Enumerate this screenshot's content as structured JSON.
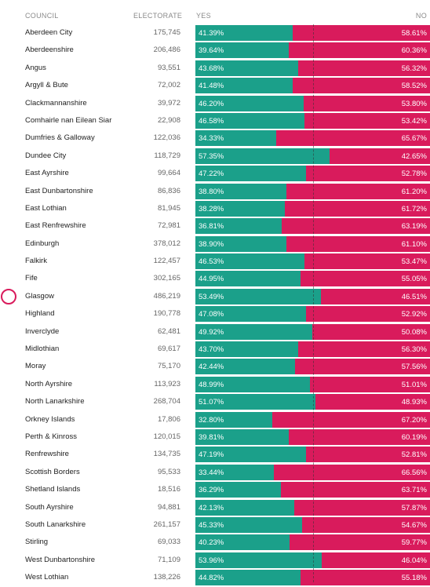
{
  "header": {
    "council": "COUNCIL",
    "electorate": "ELECTORATE",
    "yes": "YES",
    "no": "NO"
  },
  "colors": {
    "yes": "#1ba08a",
    "no": "#d91b5c",
    "marker": "#d91b5c"
  },
  "highlighted_council": "Glasgow",
  "chart_data": {
    "type": "bar",
    "stacked": true,
    "orientation": "horizontal",
    "xlim": [
      0,
      100
    ],
    "reference_line": 50,
    "categories": [
      "Aberdeen City",
      "Aberdeenshire",
      "Angus",
      "Argyll & Bute",
      "Clackmannanshire",
      "Comhairle nan Eilean Siar",
      "Dumfries & Galloway",
      "Dundee City",
      "East Ayrshire",
      "East Dunbartonshire",
      "East Lothian",
      "East Renfrewshire",
      "Edinburgh",
      "Falkirk",
      "Fife",
      "Glasgow",
      "Highland",
      "Inverclyde",
      "Midlothian",
      "Moray",
      "North Ayrshire",
      "North Lanarkshire",
      "Orkney Islands",
      "Perth & Kinross",
      "Renfrewshire",
      "Scottish Borders",
      "Shetland Islands",
      "South Ayrshire",
      "South Lanarkshire",
      "Stirling",
      "West Dunbartonshire",
      "West Lothian"
    ],
    "electorate": [
      "175,745",
      "206,486",
      "93,551",
      "72,002",
      "39,972",
      "22,908",
      "122,036",
      "118,729",
      "99,664",
      "86,836",
      "81,945",
      "72,981",
      "378,012",
      "122,457",
      "302,165",
      "486,219",
      "190,778",
      "62,481",
      "69,617",
      "75,170",
      "113,923",
      "268,704",
      "17,806",
      "120,015",
      "134,735",
      "95,533",
      "18,516",
      "94,881",
      "261,157",
      "69,033",
      "71,109",
      "138,226"
    ],
    "series": [
      {
        "name": "YES",
        "values": [
          41.39,
          39.64,
          43.68,
          41.48,
          46.2,
          46.58,
          34.33,
          57.35,
          47.22,
          38.8,
          38.28,
          36.81,
          38.9,
          46.53,
          44.95,
          53.49,
          47.08,
          49.92,
          43.7,
          42.44,
          48.99,
          51.07,
          32.8,
          39.81,
          47.19,
          33.44,
          36.29,
          42.13,
          45.33,
          40.23,
          53.96,
          44.82
        ]
      },
      {
        "name": "NO",
        "values": [
          58.61,
          60.36,
          56.32,
          58.52,
          53.8,
          53.42,
          65.67,
          42.65,
          52.78,
          61.2,
          61.72,
          63.19,
          61.1,
          53.47,
          55.05,
          46.51,
          52.92,
          50.08,
          56.3,
          57.56,
          51.01,
          48.93,
          67.2,
          60.19,
          52.81,
          66.56,
          63.71,
          57.87,
          54.67,
          59.77,
          46.04,
          55.18
        ]
      }
    ]
  }
}
